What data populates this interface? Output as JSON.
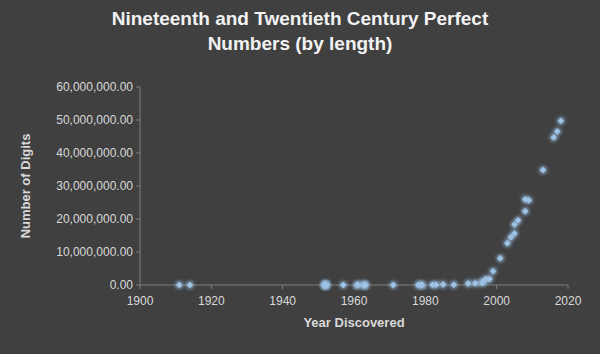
{
  "chart_data": {
    "type": "scatter",
    "title": "Nineteenth and Twentieth Century Perfect Numbers (by length)",
    "x_label": "Year Discovered",
    "y_label": "Number of Digits",
    "x": [
      1911,
      1914,
      1952,
      1952,
      1952,
      1952,
      1952,
      1957,
      1961,
      1961,
      1963,
      1963,
      1963,
      1971,
      1978,
      1979,
      1979,
      1982,
      1988,
      1983,
      1985,
      1992,
      1994,
      1996,
      1996,
      1997,
      1998,
      1999,
      2001,
      2003,
      2004,
      2005,
      2005,
      2006,
      2008,
      2009,
      2008,
      2013,
      2016,
      2017,
      2018
    ],
    "values": [
      54,
      65,
      314,
      366,
      770,
      1327,
      1373,
      1937,
      2561,
      2663,
      5834,
      5985,
      6751,
      12003,
      13066,
      13973,
      26790,
      51924,
      66530,
      79502,
      130100,
      455663,
      517430,
      757263,
      841842,
      1791864,
      1819050,
      4197919,
      8107892,
      12640858,
      14471465,
      15632458,
      18304103,
      19616714,
      22370543,
      25674127,
      25956377,
      34850340,
      44677235,
      46498850,
      49724095
    ],
    "color": "#9dc3e6",
    "marker": "diamond",
    "xlim": [
      1900,
      2020
    ],
    "xticks": [
      1900,
      1920,
      1940,
      1960,
      1980,
      2000,
      2020
    ],
    "ylim": [
      0,
      60000000
    ],
    "yticks": [
      {
        "value": 0,
        "label": "0.00"
      },
      {
        "value": 10000000,
        "label": "10,000,000.00"
      },
      {
        "value": 20000000,
        "label": "20,000,000.00"
      },
      {
        "value": 30000000,
        "label": "30,000,000.00"
      },
      {
        "value": 40000000,
        "label": "40,000,000.00"
      },
      {
        "value": 50000000,
        "label": "50,000,000.00"
      },
      {
        "value": 60000000,
        "label": "60,000,000.00"
      }
    ],
    "grid": false
  }
}
